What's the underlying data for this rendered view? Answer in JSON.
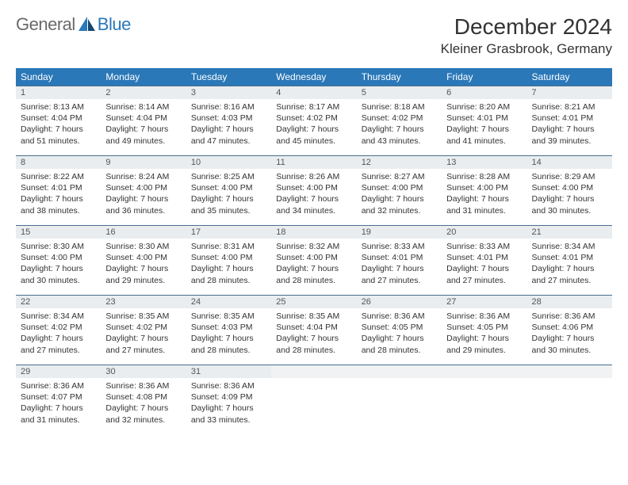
{
  "logo": {
    "text_general": "General",
    "text_blue": "Blue"
  },
  "header": {
    "month_title": "December 2024",
    "location": "Kleiner Grasbrook, Germany"
  },
  "colors": {
    "header_bg": "#2a78b8",
    "header_text": "#ffffff",
    "daynum_bg": "#e9edf0",
    "daynum_border": "#4a6f8f",
    "body_text": "#333333",
    "page_bg": "#ffffff"
  },
  "calendar": {
    "type": "table",
    "weekdays": [
      "Sunday",
      "Monday",
      "Tuesday",
      "Wednesday",
      "Thursday",
      "Friday",
      "Saturday"
    ],
    "weeks": [
      [
        {
          "day": "1",
          "sunrise": "Sunrise: 8:13 AM",
          "sunset": "Sunset: 4:04 PM",
          "daylight1": "Daylight: 7 hours",
          "daylight2": "and 51 minutes."
        },
        {
          "day": "2",
          "sunrise": "Sunrise: 8:14 AM",
          "sunset": "Sunset: 4:04 PM",
          "daylight1": "Daylight: 7 hours",
          "daylight2": "and 49 minutes."
        },
        {
          "day": "3",
          "sunrise": "Sunrise: 8:16 AM",
          "sunset": "Sunset: 4:03 PM",
          "daylight1": "Daylight: 7 hours",
          "daylight2": "and 47 minutes."
        },
        {
          "day": "4",
          "sunrise": "Sunrise: 8:17 AM",
          "sunset": "Sunset: 4:02 PM",
          "daylight1": "Daylight: 7 hours",
          "daylight2": "and 45 minutes."
        },
        {
          "day": "5",
          "sunrise": "Sunrise: 8:18 AM",
          "sunset": "Sunset: 4:02 PM",
          "daylight1": "Daylight: 7 hours",
          "daylight2": "and 43 minutes."
        },
        {
          "day": "6",
          "sunrise": "Sunrise: 8:20 AM",
          "sunset": "Sunset: 4:01 PM",
          "daylight1": "Daylight: 7 hours",
          "daylight2": "and 41 minutes."
        },
        {
          "day": "7",
          "sunrise": "Sunrise: 8:21 AM",
          "sunset": "Sunset: 4:01 PM",
          "daylight1": "Daylight: 7 hours",
          "daylight2": "and 39 minutes."
        }
      ],
      [
        {
          "day": "8",
          "sunrise": "Sunrise: 8:22 AM",
          "sunset": "Sunset: 4:01 PM",
          "daylight1": "Daylight: 7 hours",
          "daylight2": "and 38 minutes."
        },
        {
          "day": "9",
          "sunrise": "Sunrise: 8:24 AM",
          "sunset": "Sunset: 4:00 PM",
          "daylight1": "Daylight: 7 hours",
          "daylight2": "and 36 minutes."
        },
        {
          "day": "10",
          "sunrise": "Sunrise: 8:25 AM",
          "sunset": "Sunset: 4:00 PM",
          "daylight1": "Daylight: 7 hours",
          "daylight2": "and 35 minutes."
        },
        {
          "day": "11",
          "sunrise": "Sunrise: 8:26 AM",
          "sunset": "Sunset: 4:00 PM",
          "daylight1": "Daylight: 7 hours",
          "daylight2": "and 34 minutes."
        },
        {
          "day": "12",
          "sunrise": "Sunrise: 8:27 AM",
          "sunset": "Sunset: 4:00 PM",
          "daylight1": "Daylight: 7 hours",
          "daylight2": "and 32 minutes."
        },
        {
          "day": "13",
          "sunrise": "Sunrise: 8:28 AM",
          "sunset": "Sunset: 4:00 PM",
          "daylight1": "Daylight: 7 hours",
          "daylight2": "and 31 minutes."
        },
        {
          "day": "14",
          "sunrise": "Sunrise: 8:29 AM",
          "sunset": "Sunset: 4:00 PM",
          "daylight1": "Daylight: 7 hours",
          "daylight2": "and 30 minutes."
        }
      ],
      [
        {
          "day": "15",
          "sunrise": "Sunrise: 8:30 AM",
          "sunset": "Sunset: 4:00 PM",
          "daylight1": "Daylight: 7 hours",
          "daylight2": "and 30 minutes."
        },
        {
          "day": "16",
          "sunrise": "Sunrise: 8:30 AM",
          "sunset": "Sunset: 4:00 PM",
          "daylight1": "Daylight: 7 hours",
          "daylight2": "and 29 minutes."
        },
        {
          "day": "17",
          "sunrise": "Sunrise: 8:31 AM",
          "sunset": "Sunset: 4:00 PM",
          "daylight1": "Daylight: 7 hours",
          "daylight2": "and 28 minutes."
        },
        {
          "day": "18",
          "sunrise": "Sunrise: 8:32 AM",
          "sunset": "Sunset: 4:00 PM",
          "daylight1": "Daylight: 7 hours",
          "daylight2": "and 28 minutes."
        },
        {
          "day": "19",
          "sunrise": "Sunrise: 8:33 AM",
          "sunset": "Sunset: 4:01 PM",
          "daylight1": "Daylight: 7 hours",
          "daylight2": "and 27 minutes."
        },
        {
          "day": "20",
          "sunrise": "Sunrise: 8:33 AM",
          "sunset": "Sunset: 4:01 PM",
          "daylight1": "Daylight: 7 hours",
          "daylight2": "and 27 minutes."
        },
        {
          "day": "21",
          "sunrise": "Sunrise: 8:34 AM",
          "sunset": "Sunset: 4:01 PM",
          "daylight1": "Daylight: 7 hours",
          "daylight2": "and 27 minutes."
        }
      ],
      [
        {
          "day": "22",
          "sunrise": "Sunrise: 8:34 AM",
          "sunset": "Sunset: 4:02 PM",
          "daylight1": "Daylight: 7 hours",
          "daylight2": "and 27 minutes."
        },
        {
          "day": "23",
          "sunrise": "Sunrise: 8:35 AM",
          "sunset": "Sunset: 4:02 PM",
          "daylight1": "Daylight: 7 hours",
          "daylight2": "and 27 minutes."
        },
        {
          "day": "24",
          "sunrise": "Sunrise: 8:35 AM",
          "sunset": "Sunset: 4:03 PM",
          "daylight1": "Daylight: 7 hours",
          "daylight2": "and 28 minutes."
        },
        {
          "day": "25",
          "sunrise": "Sunrise: 8:35 AM",
          "sunset": "Sunset: 4:04 PM",
          "daylight1": "Daylight: 7 hours",
          "daylight2": "and 28 minutes."
        },
        {
          "day": "26",
          "sunrise": "Sunrise: 8:36 AM",
          "sunset": "Sunset: 4:05 PM",
          "daylight1": "Daylight: 7 hours",
          "daylight2": "and 28 minutes."
        },
        {
          "day": "27",
          "sunrise": "Sunrise: 8:36 AM",
          "sunset": "Sunset: 4:05 PM",
          "daylight1": "Daylight: 7 hours",
          "daylight2": "and 29 minutes."
        },
        {
          "day": "28",
          "sunrise": "Sunrise: 8:36 AM",
          "sunset": "Sunset: 4:06 PM",
          "daylight1": "Daylight: 7 hours",
          "daylight2": "and 30 minutes."
        }
      ],
      [
        {
          "day": "29",
          "sunrise": "Sunrise: 8:36 AM",
          "sunset": "Sunset: 4:07 PM",
          "daylight1": "Daylight: 7 hours",
          "daylight2": "and 31 minutes."
        },
        {
          "day": "30",
          "sunrise": "Sunrise: 8:36 AM",
          "sunset": "Sunset: 4:08 PM",
          "daylight1": "Daylight: 7 hours",
          "daylight2": "and 32 minutes."
        },
        {
          "day": "31",
          "sunrise": "Sunrise: 8:36 AM",
          "sunset": "Sunset: 4:09 PM",
          "daylight1": "Daylight: 7 hours",
          "daylight2": "and 33 minutes."
        },
        {
          "day": "",
          "empty": true
        },
        {
          "day": "",
          "empty": true
        },
        {
          "day": "",
          "empty": true
        },
        {
          "day": "",
          "empty": true
        }
      ]
    ]
  }
}
